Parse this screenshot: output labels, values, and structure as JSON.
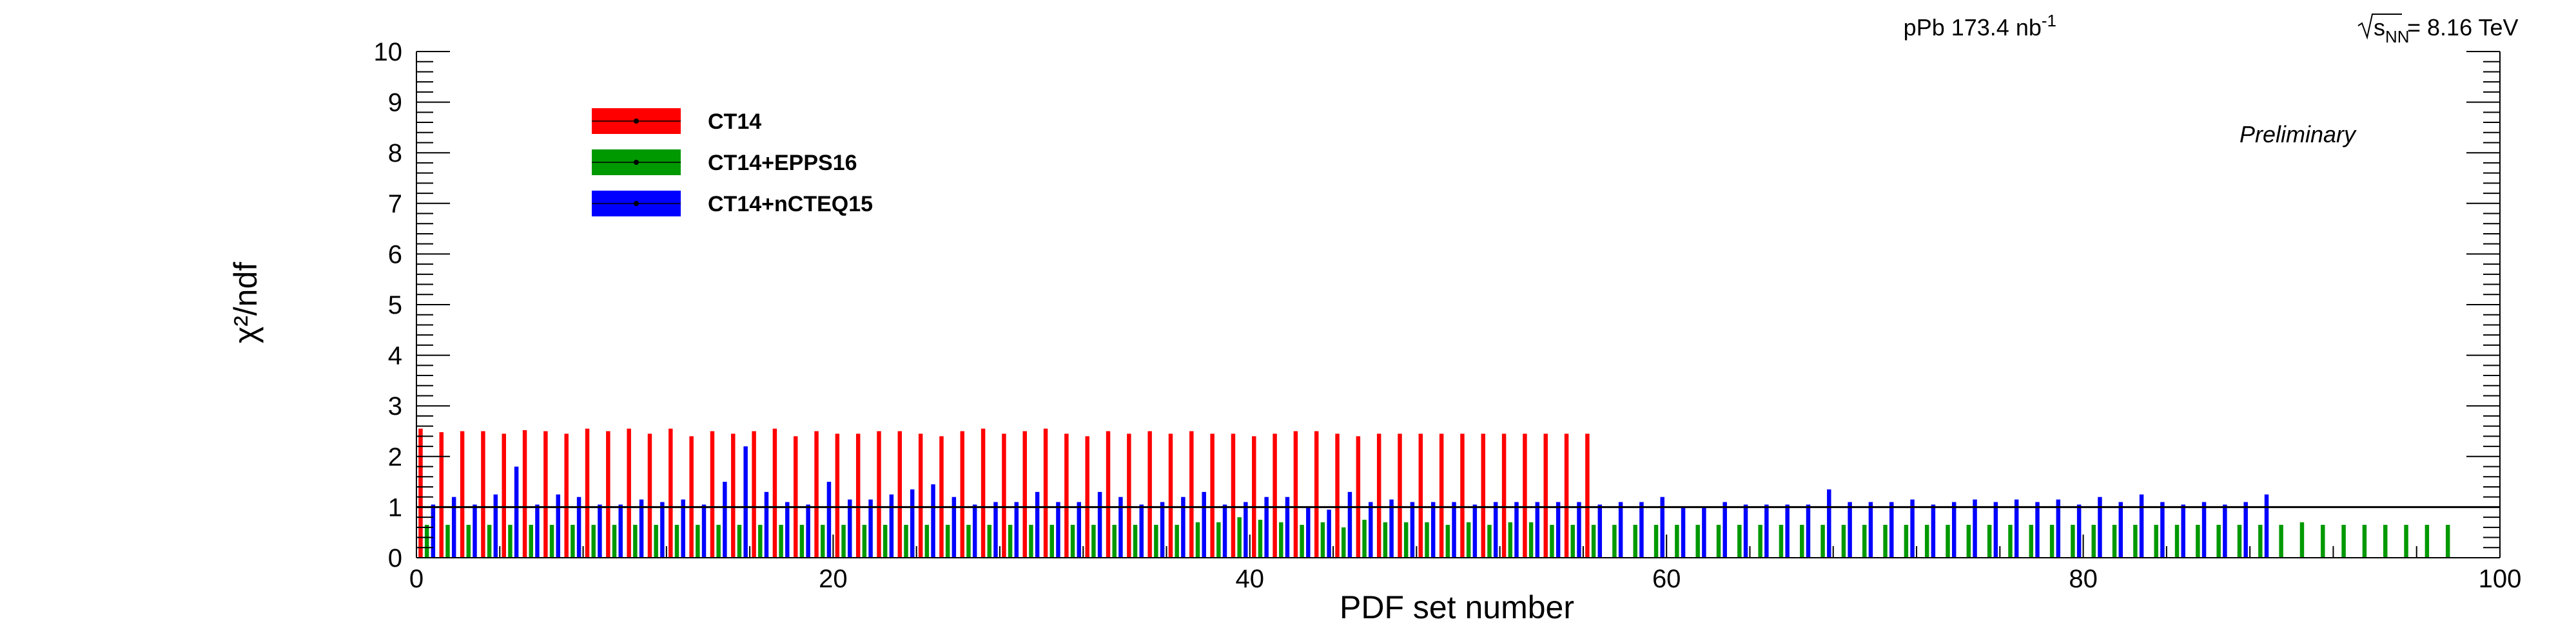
{
  "header": {
    "dataset_text": "pPb 173.4 nb",
    "dataset_sup": "-1",
    "energy_sub": "NN",
    "energy_value": " = 8.16 TeV",
    "preliminary": "Preliminary"
  },
  "chart_data": {
    "type": "bar",
    "xlabel": "PDF set number",
    "ylabel": "χ²/ndf",
    "xlim": [
      0,
      100
    ],
    "ylim": [
      0,
      10
    ],
    "x_ticks": [
      "0",
      "20",
      "40",
      "60",
      "80",
      "100"
    ],
    "y_ticks": [
      "0",
      "1",
      "2",
      "3",
      "4",
      "5",
      "6",
      "7",
      "8",
      "9",
      "10"
    ],
    "reference_line_y": 1,
    "grid": false,
    "legend_position": "top-left",
    "series": [
      {
        "name": "CT14",
        "color": "#ff0000",
        "x": [
          0,
          1,
          2,
          3,
          4,
          5,
          6,
          7,
          8,
          9,
          10,
          11,
          12,
          13,
          14,
          15,
          16,
          17,
          18,
          19,
          20,
          21,
          22,
          23,
          24,
          25,
          26,
          27,
          28,
          29,
          30,
          31,
          32,
          33,
          34,
          35,
          36,
          37,
          38,
          39,
          40,
          41,
          42,
          43,
          44,
          45,
          46,
          47,
          48,
          49,
          50,
          51,
          52,
          53,
          54,
          55,
          56
        ],
        "values": [
          2.55,
          2.48,
          2.5,
          2.5,
          2.45,
          2.52,
          2.5,
          2.45,
          2.55,
          2.5,
          2.55,
          2.45,
          2.55,
          2.4,
          2.5,
          2.45,
          2.5,
          2.55,
          2.4,
          2.5,
          2.45,
          2.45,
          2.5,
          2.5,
          2.45,
          2.4,
          2.5,
          2.55,
          2.45,
          2.5,
          2.55,
          2.45,
          2.4,
          2.5,
          2.45,
          2.5,
          2.45,
          2.5,
          2.45,
          2.45,
          2.4,
          2.45,
          2.5,
          2.5,
          2.45,
          2.4,
          2.45,
          2.45,
          2.45,
          2.45,
          2.45,
          2.45,
          2.45,
          2.45,
          2.45,
          2.45,
          2.45
        ]
      },
      {
        "name": "CT14+EPPS16",
        "color": "#009900",
        "x": [
          0,
          1,
          2,
          3,
          4,
          5,
          6,
          7,
          8,
          9,
          10,
          11,
          12,
          13,
          14,
          15,
          16,
          17,
          18,
          19,
          20,
          21,
          22,
          23,
          24,
          25,
          26,
          27,
          28,
          29,
          30,
          31,
          32,
          33,
          34,
          35,
          36,
          37,
          38,
          39,
          40,
          41,
          42,
          43,
          44,
          45,
          46,
          47,
          48,
          49,
          50,
          51,
          52,
          53,
          54,
          55,
          56,
          57,
          58,
          59,
          60,
          61,
          62,
          63,
          64,
          65,
          66,
          67,
          68,
          69,
          70,
          71,
          72,
          73,
          74,
          75,
          76,
          77,
          78,
          79,
          80,
          81,
          82,
          83,
          84,
          85,
          86,
          87,
          88,
          89,
          90,
          91,
          92,
          93,
          94,
          95,
          96,
          97
        ],
        "values": [
          0.65,
          0.65,
          0.65,
          0.65,
          0.65,
          0.65,
          0.65,
          0.65,
          0.65,
          0.65,
          0.65,
          0.65,
          0.65,
          0.65,
          0.65,
          0.65,
          0.65,
          0.65,
          0.65,
          0.65,
          0.65,
          0.65,
          0.65,
          0.65,
          0.65,
          0.65,
          0.65,
          0.65,
          0.65,
          0.65,
          0.65,
          0.65,
          0.65,
          0.65,
          0.65,
          0.65,
          0.65,
          0.7,
          0.7,
          0.8,
          0.75,
          0.7,
          0.65,
          0.7,
          0.6,
          0.75,
          0.7,
          0.7,
          0.7,
          0.65,
          0.7,
          0.65,
          0.7,
          0.7,
          0.65,
          0.65,
          0.65,
          0.65,
          0.65,
          0.65,
          0.65,
          0.65,
          0.65,
          0.65,
          0.65,
          0.65,
          0.65,
          0.65,
          0.65,
          0.65,
          0.65,
          0.65,
          0.65,
          0.65,
          0.65,
          0.65,
          0.65,
          0.65,
          0.65,
          0.65,
          0.65,
          0.65,
          0.65,
          0.65,
          0.65,
          0.65,
          0.65,
          0.65,
          0.65,
          0.65,
          0.7,
          0.65,
          0.65,
          0.65,
          0.65,
          0.65,
          0.65,
          0.65
        ]
      },
      {
        "name": "CT14+nCTEQ15",
        "color": "#0000ff",
        "x": [
          0,
          1,
          2,
          3,
          4,
          5,
          6,
          7,
          8,
          9,
          10,
          11,
          12,
          13,
          14,
          15,
          16,
          17,
          18,
          19,
          20,
          21,
          22,
          23,
          24,
          25,
          26,
          27,
          28,
          29,
          30,
          31,
          32,
          33,
          34,
          35,
          36,
          37,
          38,
          39,
          40,
          41,
          42,
          43,
          44,
          45,
          46,
          47,
          48,
          49,
          50,
          51,
          52,
          53,
          54,
          55,
          56,
          57,
          58,
          59,
          60,
          61,
          62,
          63,
          64,
          65,
          66,
          67,
          68,
          69,
          70,
          71,
          72,
          73,
          74,
          75,
          76,
          77,
          78,
          79,
          80,
          81,
          82,
          83,
          84,
          85,
          86,
          87,
          88
        ],
        "values": [
          1.05,
          1.2,
          1.05,
          1.25,
          1.8,
          1.05,
          1.25,
          1.2,
          1.05,
          1.05,
          1.15,
          1.1,
          1.15,
          1.05,
          1.5,
          2.2,
          1.3,
          1.1,
          1.05,
          1.5,
          1.15,
          1.15,
          1.25,
          1.35,
          1.45,
          1.2,
          1.05,
          1.1,
          1.1,
          1.3,
          1.1,
          1.1,
          1.3,
          1.2,
          1.05,
          1.1,
          1.2,
          1.3,
          1.05,
          1.1,
          1.2,
          1.2,
          1.0,
          0.95,
          1.3,
          1.1,
          1.15,
          1.1,
          1.1,
          1.1,
          1.05,
          1.1,
          1.1,
          1.1,
          1.1,
          1.1,
          1.05,
          1.1,
          1.1,
          1.2,
          1.0,
          1.0,
          1.1,
          1.05,
          1.05,
          1.05,
          1.05,
          1.35,
          1.1,
          1.1,
          1.1,
          1.15,
          1.05,
          1.1,
          1.15,
          1.1,
          1.15,
          1.1,
          1.15,
          1.05,
          1.2,
          1.1,
          1.25,
          1.1,
          1.05,
          1.1,
          1.05,
          1.1,
          1.25
        ]
      }
    ]
  }
}
